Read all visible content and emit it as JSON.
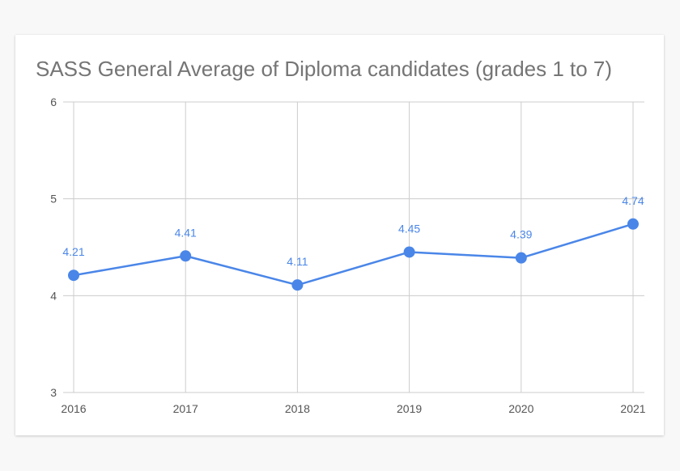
{
  "chart_data": {
    "type": "line",
    "title": "SASS General Average of Diploma candidates (grades 1 to 7)",
    "x": [
      "2016",
      "2017",
      "2018",
      "2019",
      "2020",
      "2021"
    ],
    "series": [
      {
        "values": [
          4.21,
          4.41,
          4.11,
          4.45,
          4.39,
          4.74
        ],
        "data_labels": [
          "4.21",
          "4.41",
          "4.11",
          "4.45",
          "4.39",
          "4.74"
        ]
      }
    ],
    "ylim": [
      3,
      6
    ],
    "yticks": [
      "3",
      "4",
      "5",
      "6"
    ],
    "grid": true,
    "legend": "none",
    "colors": {
      "line": "#4a86e8",
      "grid": "#cccccc",
      "axis_text": "#555555",
      "title": "#757575"
    }
  }
}
